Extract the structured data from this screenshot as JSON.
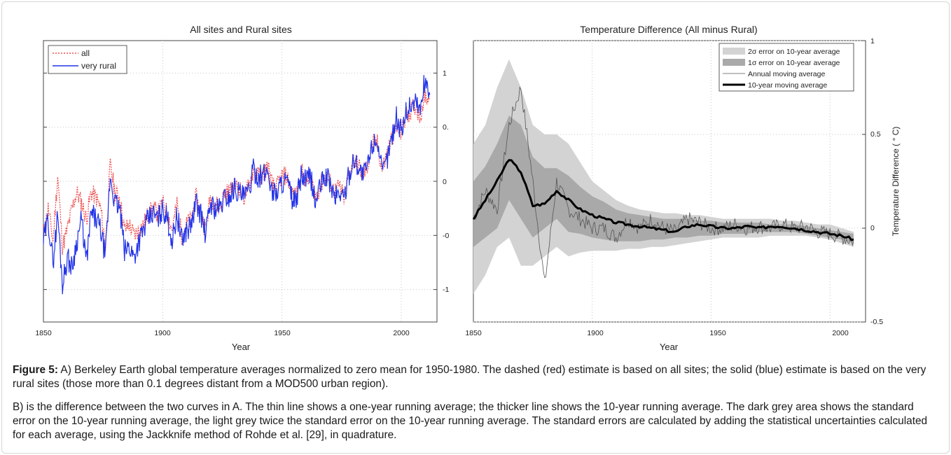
{
  "colors": {
    "all": "#ef4e4e",
    "very_rural": "#2233e8",
    "err2": "#d3d3d3",
    "err1": "#a9a9a9",
    "annual": "#555555",
    "decadal": "#000000"
  },
  "caption": {
    "label": "Figure 5:",
    "p1": " A) Berkeley Earth global temperature averages normalized to zero mean for 1950-1980. The dashed (red) estimate is based on all sites; the solid (blue) estimate is based on the very rural sites (those more than 0.1 degrees distant from a MOD500 urban region).",
    "p2": "B) is the difference between the two curves in A. The thin line shows a one-year running average; the thicker line shows the 10-year running average. The dark grey area shows the standard error on the 10-year running average, the light grey twice the standard error on the 10-year running average. The standard errors are calculated by adding the statistical uncertainties calculated for each average, using the Jackknife method of Rohde et al. [29], in quadrature."
  },
  "chart_data": [
    {
      "type": "line",
      "title": "All sites and Rural sites",
      "xlabel": "Year",
      "ylabel": "",
      "xlim": [
        1850,
        2015
      ],
      "ylim": [
        -1.3,
        1.3
      ],
      "xticks": [
        "1850",
        "1900",
        "1950",
        "2000"
      ],
      "yticks": [
        "1",
        "0.",
        "0",
        "-0",
        "-1"
      ],
      "legend_position": "top-left",
      "x": [
        1850,
        1852,
        1854,
        1856,
        1858,
        1860,
        1862,
        1864,
        1866,
        1868,
        1870,
        1872,
        1874,
        1876,
        1878,
        1880,
        1882,
        1884,
        1886,
        1888,
        1890,
        1892,
        1894,
        1896,
        1898,
        1900,
        1902,
        1904,
        1906,
        1908,
        1910,
        1912,
        1914,
        1916,
        1918,
        1920,
        1922,
        1924,
        1926,
        1928,
        1930,
        1932,
        1934,
        1936,
        1938,
        1940,
        1942,
        1944,
        1946,
        1948,
        1950,
        1952,
        1954,
        1956,
        1958,
        1960,
        1962,
        1964,
        1966,
        1968,
        1970,
        1972,
        1974,
        1976,
        1978,
        1980,
        1982,
        1984,
        1986,
        1988,
        1990,
        1992,
        1994,
        1996,
        1998,
        2000,
        2002,
        2004,
        2006,
        2008,
        2010,
        2012
      ],
      "series": [
        {
          "name": "all",
          "style": "dashed",
          "values": [
            -0.5,
            -0.25,
            -0.55,
            0.05,
            -0.6,
            -0.45,
            -0.25,
            -0.1,
            -0.2,
            -0.35,
            -0.1,
            -0.15,
            -0.25,
            -0.6,
            0.15,
            -0.1,
            -0.15,
            -0.45,
            -0.4,
            -0.5,
            -0.45,
            -0.4,
            -0.3,
            -0.25,
            -0.3,
            -0.2,
            -0.3,
            -0.45,
            -0.2,
            -0.5,
            -0.4,
            -0.35,
            -0.15,
            -0.3,
            -0.45,
            -0.15,
            -0.2,
            -0.25,
            -0.1,
            -0.1,
            -0.05,
            -0.05,
            -0.15,
            -0.05,
            0.1,
            0.05,
            0.05,
            0.15,
            -0.05,
            -0.05,
            0.05,
            0.05,
            -0.1,
            -0.15,
            0.1,
            0.0,
            0.05,
            -0.15,
            -0.05,
            0.05,
            0.0,
            -0.1,
            -0.05,
            -0.15,
            0.05,
            0.2,
            0.15,
            0.05,
            0.15,
            0.35,
            0.35,
            0.1,
            0.25,
            0.4,
            0.5,
            0.45,
            0.6,
            0.65,
            0.7,
            0.6,
            0.8,
            0.75
          ]
        },
        {
          "name": "very rural",
          "style": "solid",
          "values": [
            -0.55,
            -0.35,
            -0.75,
            -0.3,
            -0.95,
            -0.7,
            -0.8,
            -0.55,
            -0.35,
            -0.75,
            -0.3,
            -0.35,
            -0.45,
            -0.7,
            0.05,
            -0.2,
            -0.25,
            -0.65,
            -0.6,
            -0.7,
            -0.55,
            -0.45,
            -0.35,
            -0.3,
            -0.35,
            -0.25,
            -0.35,
            -0.55,
            -0.3,
            -0.55,
            -0.45,
            -0.4,
            -0.2,
            -0.3,
            -0.5,
            -0.2,
            -0.25,
            -0.25,
            -0.15,
            -0.15,
            -0.05,
            -0.1,
            -0.15,
            -0.1,
            0.1,
            0.05,
            0.05,
            0.1,
            -0.1,
            -0.1,
            0.0,
            0.0,
            -0.15,
            -0.2,
            0.05,
            0.0,
            0.05,
            -0.2,
            -0.05,
            0.05,
            0.0,
            -0.15,
            -0.1,
            -0.15,
            0.05,
            0.2,
            0.15,
            0.05,
            0.15,
            0.35,
            0.4,
            0.05,
            0.2,
            0.4,
            0.6,
            0.45,
            0.65,
            0.7,
            0.75,
            0.65,
            0.95,
            0.8
          ]
        }
      ]
    },
    {
      "type": "line",
      "title": "Temperature Difference (All minus Rural)",
      "xlabel": "Year",
      "ylabel": "Temperature Difference ( ° C)",
      "xlim": [
        1850,
        2015
      ],
      "ylim": [
        -0.5,
        1
      ],
      "xticks": [
        "1850",
        "1900",
        "1950",
        "2000"
      ],
      "yticks": [
        "1",
        "0.5",
        "0",
        "-0.5"
      ],
      "legend_position": "top-right",
      "x": [
        1850,
        1855,
        1860,
        1865,
        1870,
        1875,
        1880,
        1885,
        1890,
        1895,
        1900,
        1905,
        1910,
        1915,
        1920,
        1925,
        1930,
        1935,
        1940,
        1945,
        1950,
        1955,
        1960,
        1965,
        1970,
        1975,
        1980,
        1985,
        1990,
        1995,
        2000,
        2005,
        2010
      ],
      "series": [
        {
          "name": "2σ error on 10-year average",
          "kind": "band",
          "upper": [
            0.45,
            0.55,
            0.75,
            0.9,
            0.75,
            0.55,
            0.5,
            0.5,
            0.45,
            0.35,
            0.25,
            0.2,
            0.15,
            0.12,
            0.1,
            0.09,
            0.08,
            0.08,
            0.07,
            0.07,
            0.06,
            0.05,
            0.05,
            0.05,
            0.05,
            0.05,
            0.04,
            0.04,
            0.03,
            0.02,
            0.02,
            0.0,
            -0.02
          ],
          "lower": [
            -0.35,
            -0.25,
            -0.1,
            -0.05,
            -0.2,
            -0.2,
            -0.15,
            -0.1,
            -0.15,
            -0.13,
            -0.12,
            -0.12,
            -0.12,
            -0.11,
            -0.11,
            -0.1,
            -0.1,
            -0.09,
            -0.08,
            -0.07,
            -0.06,
            -0.05,
            -0.05,
            -0.05,
            -0.05,
            -0.04,
            -0.04,
            -0.04,
            -0.04,
            -0.05,
            -0.06,
            -0.08,
            -0.1
          ]
        },
        {
          "name": "1σ error on 10-year average",
          "kind": "band",
          "upper": [
            0.25,
            0.33,
            0.45,
            0.6,
            0.55,
            0.38,
            0.32,
            0.32,
            0.28,
            0.22,
            0.17,
            0.14,
            0.1,
            0.08,
            0.07,
            0.06,
            0.05,
            0.05,
            0.05,
            0.04,
            0.04,
            0.03,
            0.03,
            0.03,
            0.03,
            0.02,
            0.02,
            0.02,
            0.01,
            0.0,
            -0.01,
            -0.02,
            -0.03
          ],
          "lower": [
            -0.1,
            -0.05,
            0.0,
            0.15,
            0.05,
            -0.05,
            0.0,
            0.05,
            -0.02,
            -0.03,
            -0.05,
            -0.06,
            -0.07,
            -0.07,
            -0.07,
            -0.06,
            -0.06,
            -0.05,
            -0.05,
            -0.04,
            -0.04,
            -0.03,
            -0.03,
            -0.03,
            -0.02,
            -0.02,
            -0.02,
            -0.02,
            -0.03,
            -0.04,
            -0.05,
            -0.06,
            -0.08
          ]
        },
        {
          "name": "Annual moving average",
          "kind": "line",
          "values": [
            0.05,
            0.2,
            0.1,
            0.55,
            0.75,
            0.25,
            -0.3,
            0.25,
            0.1,
            0.05,
            0.0,
            0.0,
            -0.05,
            0.05,
            0.0,
            0.05,
            0.0,
            -0.02,
            0.05,
            0.03,
            0.0,
            0.0,
            0.02,
            0.0,
            0.01,
            0.0,
            0.02,
            0.0,
            0.01,
            -0.02,
            -0.03,
            -0.05,
            -0.07
          ]
        },
        {
          "name": "10-year moving average",
          "kind": "line",
          "values": [
            0.05,
            0.15,
            0.25,
            0.37,
            0.3,
            0.12,
            0.13,
            0.2,
            0.15,
            0.1,
            0.07,
            0.05,
            0.03,
            0.02,
            0.01,
            0.0,
            -0.01,
            -0.02,
            0.01,
            0.02,
            0.01,
            0.0,
            0.0,
            0.01,
            0.0,
            0.01,
            0.01,
            0.0,
            -0.01,
            -0.02,
            -0.03,
            -0.04,
            -0.06
          ]
        }
      ]
    }
  ]
}
